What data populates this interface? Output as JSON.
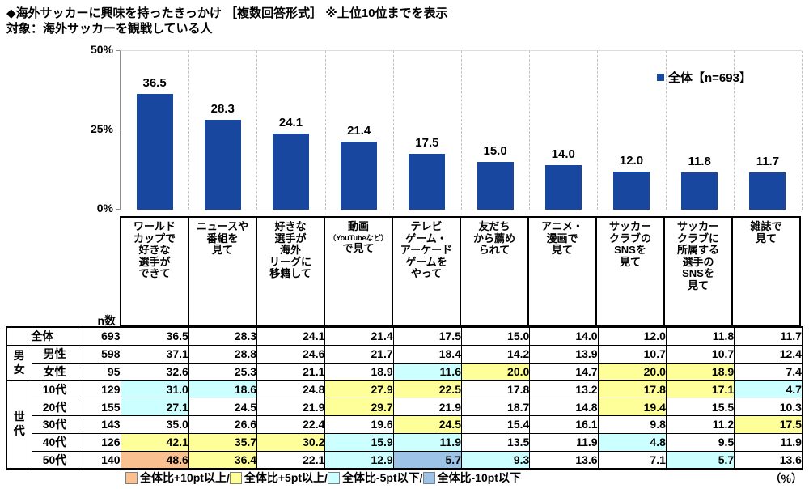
{
  "chart_data": {
    "type": "bar",
    "title": "◆海外サッカーに興味を持ったきっかけ ［複数回答形式］ ※上位10位までを表示",
    "subtitle": "対象：海外サッカーを観戦している人",
    "legend": {
      "label": "全体【n=693】",
      "position": "top-right"
    },
    "ylim": [
      0,
      50
    ],
    "yticks": [
      {
        "label": "0%",
        "value": 0
      },
      {
        "label": "25%",
        "value": 25
      },
      {
        "label": "50%",
        "value": 50
      }
    ],
    "grid": "vertical-dashed",
    "bar_color": "#17479E",
    "categories": [
      [
        "ワールド",
        "カップで",
        "好きな",
        "選手が",
        "できて"
      ],
      [
        "ニュースや",
        "番組を",
        "見て"
      ],
      [
        "好きな",
        "選手が",
        "海外",
        "リーグに",
        "移籍して"
      ],
      [
        "動画",
        "（YouTubeなど）",
        "で見て"
      ],
      [
        "テレビ",
        "ゲーム・",
        "アーケード",
        "ゲームを",
        "やって"
      ],
      [
        "友だち",
        "から薦め",
        "られて"
      ],
      [
        "アニメ・",
        "漫画で",
        "見て"
      ],
      [
        "サッカー",
        "クラブの",
        "SNSを",
        "見て"
      ],
      [
        "サッカー",
        "クラブに",
        "所属する",
        "選手の",
        "SNSを",
        "見て"
      ],
      [
        "雑誌で",
        "見て"
      ]
    ],
    "values": [
      36.5,
      28.3,
      24.1,
      21.4,
      17.5,
      15.0,
      14.0,
      12.0,
      11.8,
      11.7
    ],
    "value_labels": [
      "36.5",
      "28.3",
      "24.1",
      "21.4",
      "17.5",
      "15.0",
      "14.0",
      "12.0",
      "11.8",
      "11.7"
    ]
  },
  "table": {
    "n_header": "n数",
    "groups": [
      {
        "label": "男女",
        "start": 1,
        "span": 2
      },
      {
        "label": "世代",
        "start": 3,
        "span": 5
      }
    ],
    "rows": [
      {
        "label": "全体",
        "n": "693",
        "values": [
          "36.5",
          "28.3",
          "24.1",
          "21.4",
          "17.5",
          "15.0",
          "14.0",
          "12.0",
          "11.8",
          "11.7"
        ],
        "hl": [
          "",
          "",
          "",
          "",
          "",
          "",
          "",
          "",
          "",
          ""
        ]
      },
      {
        "label": "男性",
        "n": "598",
        "values": [
          "37.1",
          "28.8",
          "24.6",
          "21.7",
          "18.4",
          "14.2",
          "13.9",
          "10.7",
          "10.7",
          "12.4"
        ],
        "hl": [
          "",
          "",
          "",
          "",
          "",
          "",
          "",
          "",
          "",
          ""
        ]
      },
      {
        "label": "女性",
        "n": "95",
        "values": [
          "32.6",
          "25.3",
          "21.1",
          "18.9",
          "11.6",
          "20.0",
          "14.7",
          "20.0",
          "18.9",
          "7.4"
        ],
        "hl": [
          "",
          "",
          "",
          "",
          "c",
          "y",
          "",
          "y",
          "y",
          ""
        ]
      },
      {
        "label": "10代",
        "n": "129",
        "values": [
          "31.0",
          "18.6",
          "24.8",
          "27.9",
          "22.5",
          "17.8",
          "13.2",
          "17.8",
          "17.1",
          "4.7"
        ],
        "hl": [
          "c",
          "c",
          "",
          "y",
          "y",
          "",
          "",
          "y",
          "y",
          "c"
        ]
      },
      {
        "label": "20代",
        "n": "155",
        "values": [
          "27.1",
          "24.5",
          "21.9",
          "29.7",
          "21.9",
          "18.7",
          "14.8",
          "19.4",
          "15.5",
          "10.3"
        ],
        "hl": [
          "c",
          "",
          "",
          "y",
          "",
          "",
          "",
          "y",
          "",
          ""
        ]
      },
      {
        "label": "30代",
        "n": "143",
        "values": [
          "35.0",
          "26.6",
          "22.4",
          "19.6",
          "24.5",
          "15.4",
          "16.1",
          "9.8",
          "11.2",
          "17.5"
        ],
        "hl": [
          "",
          "",
          "",
          "",
          "y",
          "",
          "",
          "",
          "",
          "y"
        ]
      },
      {
        "label": "40代",
        "n": "126",
        "values": [
          "42.1",
          "35.7",
          "30.2",
          "15.9",
          "11.9",
          "13.5",
          "11.9",
          "4.8",
          "9.5",
          "11.9"
        ],
        "hl": [
          "y",
          "y",
          "y",
          "c",
          "c",
          "",
          "",
          "c",
          "",
          ""
        ]
      },
      {
        "label": "50代",
        "n": "140",
        "values": [
          "48.6",
          "36.4",
          "22.1",
          "12.9",
          "5.7",
          "9.3",
          "13.6",
          "7.1",
          "5.7",
          "13.6"
        ],
        "hl": [
          "o",
          "y",
          "",
          "c",
          "b",
          "c",
          "",
          "",
          "c",
          ""
        ]
      }
    ]
  },
  "legend_bottom": {
    "items": [
      {
        "code": "o",
        "color": "#FAC090",
        "label": "全体比+10pt以上/"
      },
      {
        "code": "y",
        "color": "#FFFF99",
        "label": "全体比+5pt以上/"
      },
      {
        "code": "c",
        "color": "#CCFFFF",
        "label": "全体比-5pt以下/"
      },
      {
        "code": "b",
        "color": "#9DC3E6",
        "label": "全体比-10pt以下"
      }
    ],
    "unit": "（%）"
  }
}
